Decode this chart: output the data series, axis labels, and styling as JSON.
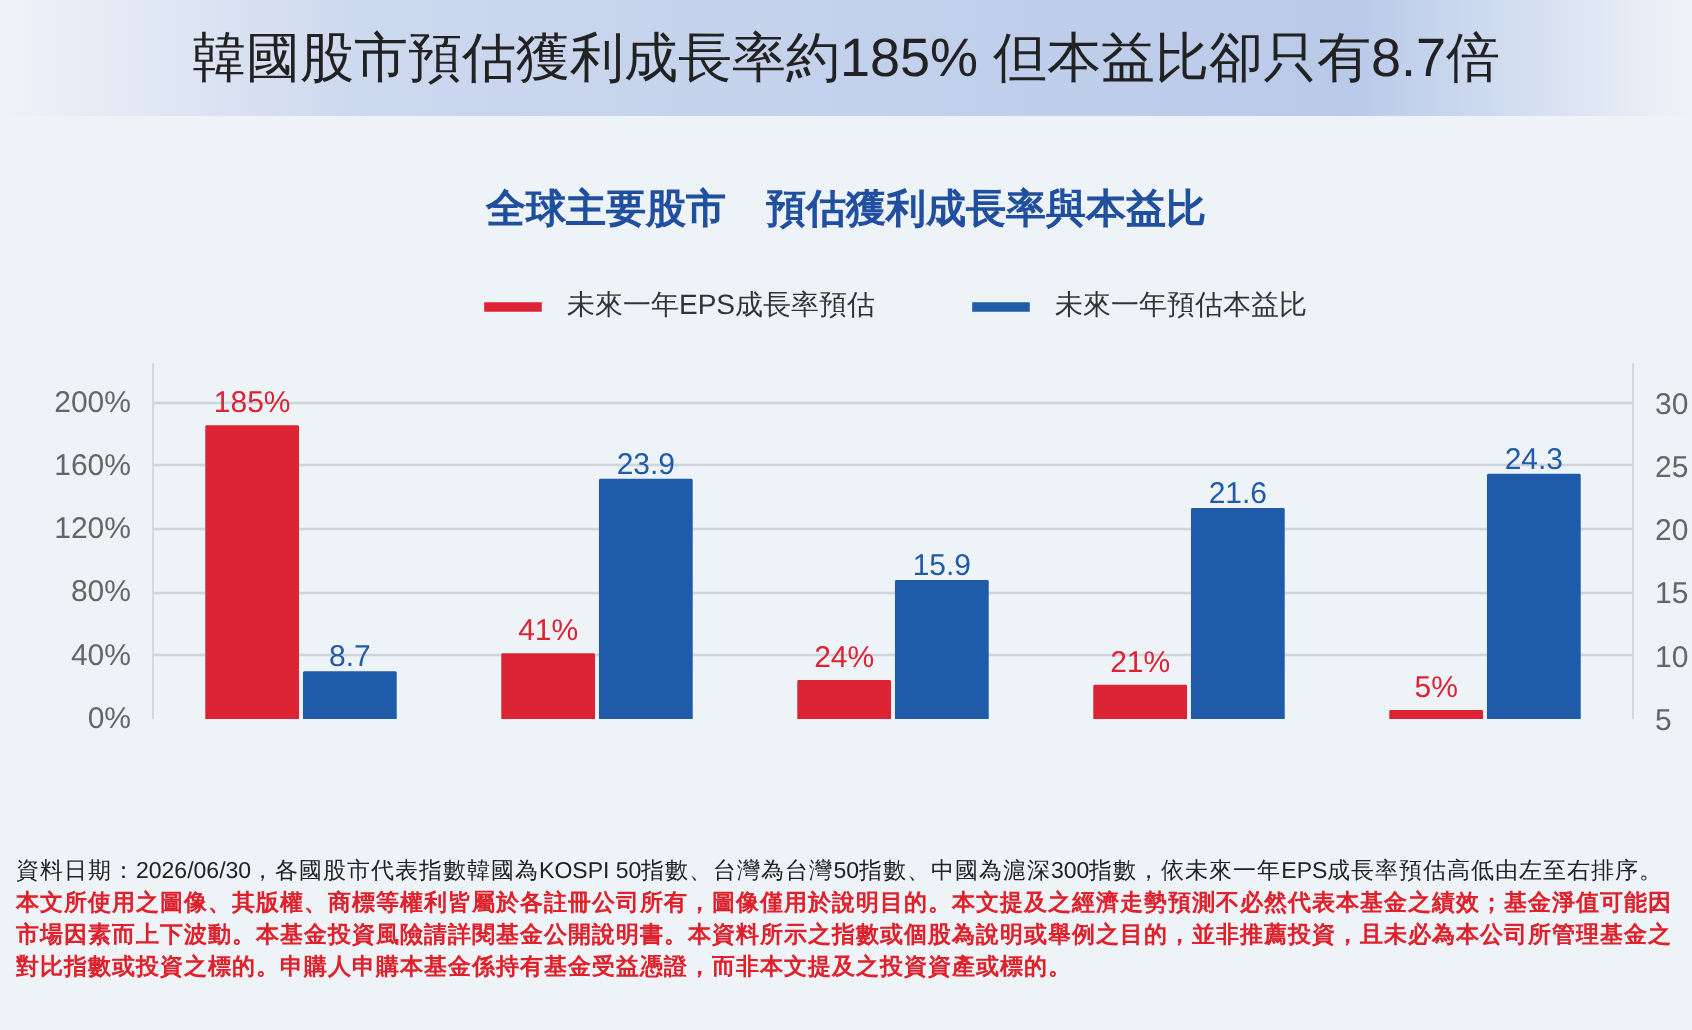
{
  "chart_data": {
    "type": "bar",
    "title": "韓國股市預估獲利成長率約185% 但本益比卻只有8.7倍",
    "subtitle": "全球主要股市　預估獲利成長率與本益比",
    "categories": [
      null,
      null,
      null,
      null,
      null
    ],
    "series": [
      {
        "name": "未來一年EPS成長率預估",
        "color": "#dc2434",
        "values": [
          185,
          41,
          24,
          21,
          5
        ],
        "value_labels": [
          "185%",
          "41%",
          "24%",
          "21%",
          "5%"
        ]
      },
      {
        "name": "未來一年預估本益比",
        "color": "#1f5ba8",
        "axis": "y2",
        "values": [
          8.7,
          23.9,
          15.9,
          21.6,
          24.3
        ],
        "value_labels": [
          "8.7",
          "23.9",
          "15.9",
          "21.6",
          "24.3"
        ]
      }
    ],
    "ylim": [
      0,
      225
    ],
    "yticks": [
      {
        "value": 0,
        "label": "0%"
      },
      {
        "value": 40,
        "label": "40%"
      },
      {
        "value": 80,
        "label": "80%"
      },
      {
        "value": 120,
        "label": "120%"
      },
      {
        "value": 160,
        "label": "160%"
      },
      {
        "value": 200,
        "label": "200%"
      }
    ],
    "y2lim": [
      5,
      33.125
    ],
    "y2ticks": [
      5,
      10,
      15,
      20,
      25,
      30
    ],
    "grid": "y",
    "legend": "top",
    "annotations": [
      "資料日期：2026/06/30，各國股市代表指數韓國為KOSPI 50指數、台灣為台灣50指數、中國為滬深300指數，依未來一年EPS成長率預估高低由左至右排序。",
      "本文所使用之圖像、其版權、商標等權利皆屬於各註冊公司所有，圖像僅用於說明目的。本文提及之經濟走勢預測不必然代表本基金之績效；基金淨值可能因市場因素而上下波動。本基金投資風險請詳閱基金公開說明書。本資料所示之指數或個股為說明或舉例之目的，並非推薦投資，且未必為本公司所管理基金之對比指數或投資之標的。申購人申購本基金係持有基金受益憑證，而非本文提及之投資資產或標的。"
    ]
  }
}
